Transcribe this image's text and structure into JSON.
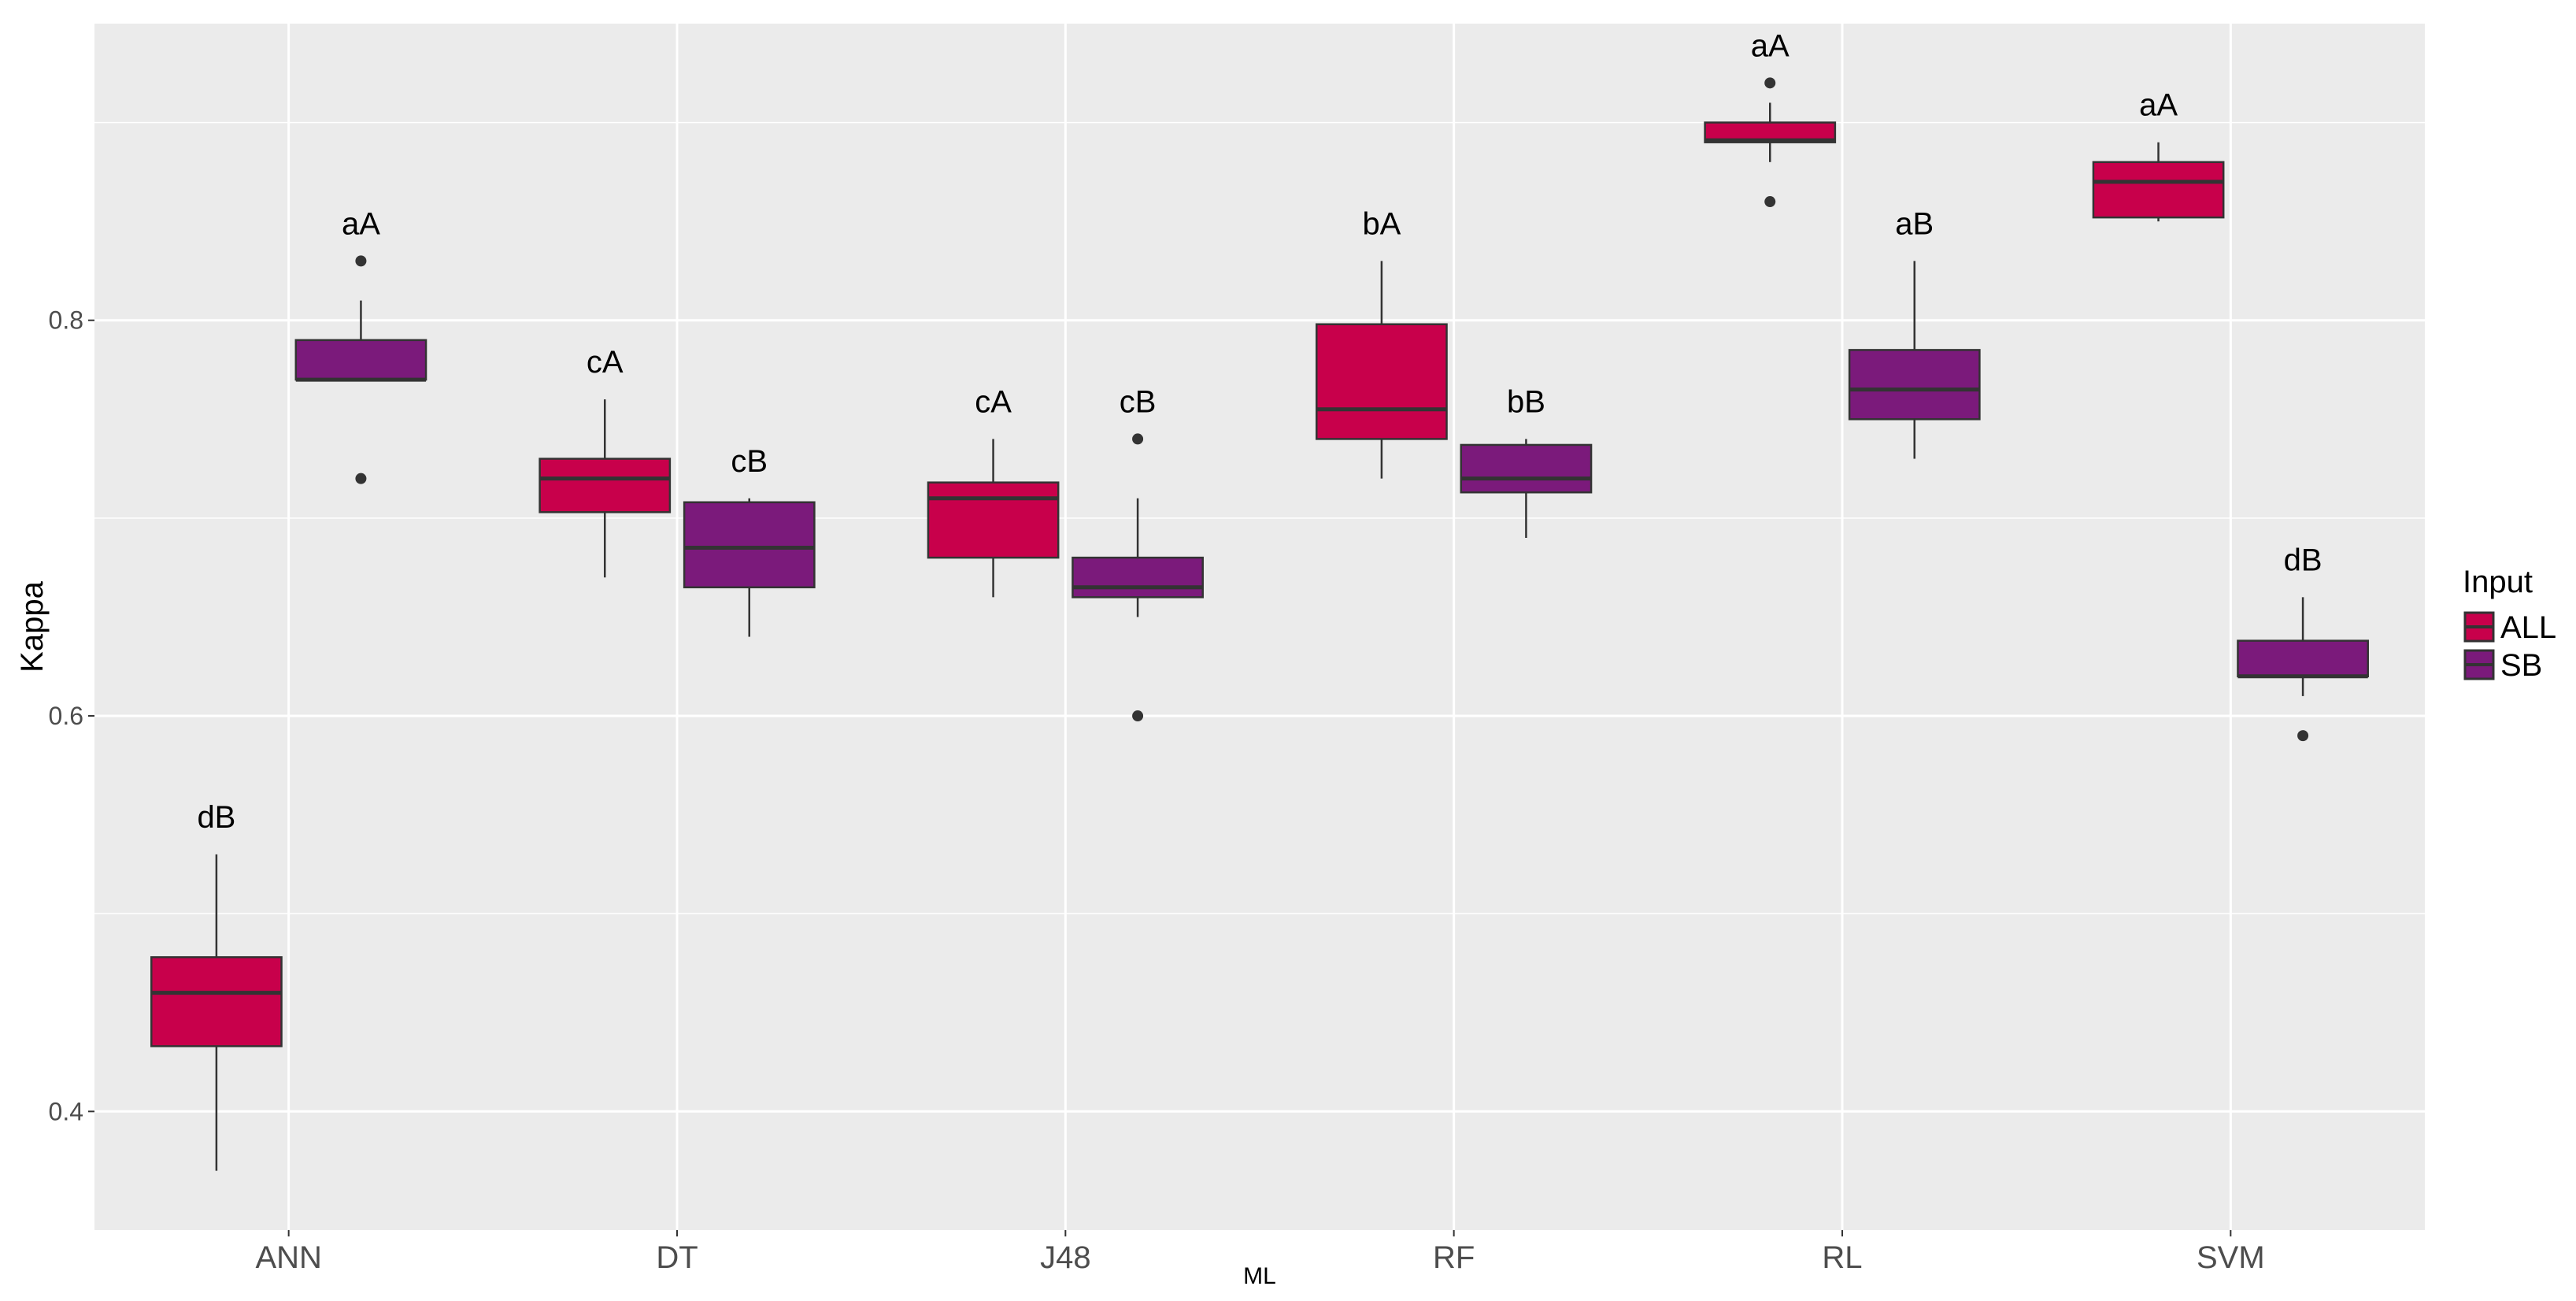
{
  "chart_data": {
    "type": "boxplot",
    "title": "",
    "xlabel": "ML",
    "ylabel": "Kappa",
    "ylim": [
      0.34,
      0.95
    ],
    "yticks": [
      0.4,
      0.6,
      0.8
    ],
    "ytick_labels": [
      "0.4",
      "0.6",
      "0.8"
    ],
    "categories": [
      "ANN",
      "DT",
      "J48",
      "RF",
      "RL",
      "SVM"
    ],
    "legend": {
      "title": "Input",
      "position": "right",
      "entries": [
        "ALL",
        "SB"
      ]
    },
    "colors": {
      "ALL": "#c8004b",
      "SB": "#7b1a7b",
      "panel": "#ebebeb",
      "grid": "#ffffff",
      "line": "#333333"
    },
    "series": [
      {
        "name": "ALL",
        "boxes": [
          {
            "category": "ANN",
            "q1": 0.433,
            "median": 0.46,
            "q3": 0.478,
            "whisker_low": 0.37,
            "whisker_high": 0.53,
            "outliers": [],
            "label": "dB"
          },
          {
            "category": "DT",
            "q1": 0.703,
            "median": 0.72,
            "q3": 0.73,
            "whisker_low": 0.67,
            "whisker_high": 0.76,
            "outliers": [],
            "label": "cA"
          },
          {
            "category": "J48",
            "q1": 0.68,
            "median": 0.71,
            "q3": 0.718,
            "whisker_low": 0.66,
            "whisker_high": 0.74,
            "outliers": [],
            "label": "cA"
          },
          {
            "category": "RF",
            "q1": 0.74,
            "median": 0.755,
            "q3": 0.798,
            "whisker_low": 0.72,
            "whisker_high": 0.83,
            "outliers": [],
            "label": "bA"
          },
          {
            "category": "RL",
            "q1": 0.89,
            "median": 0.891,
            "q3": 0.9,
            "whisker_low": 0.88,
            "whisker_high": 0.91,
            "outliers": [
              0.92,
              0.86
            ],
            "label": "aA"
          },
          {
            "category": "SVM",
            "q1": 0.852,
            "median": 0.87,
            "q3": 0.88,
            "whisker_low": 0.85,
            "whisker_high": 0.89,
            "outliers": [],
            "label": "aA"
          }
        ]
      },
      {
        "name": "SB",
        "boxes": [
          {
            "category": "ANN",
            "q1": 0.77,
            "median": 0.77,
            "q3": 0.79,
            "whisker_low": 0.77,
            "whisker_high": 0.81,
            "outliers": [
              0.83,
              0.72
            ],
            "label": "aA"
          },
          {
            "category": "DT",
            "q1": 0.665,
            "median": 0.685,
            "q3": 0.708,
            "whisker_low": 0.64,
            "whisker_high": 0.71,
            "outliers": [],
            "label": "cB"
          },
          {
            "category": "J48",
            "q1": 0.66,
            "median": 0.665,
            "q3": 0.68,
            "whisker_low": 0.65,
            "whisker_high": 0.71,
            "outliers": [
              0.74,
              0.6
            ],
            "label": "cB"
          },
          {
            "category": "RF",
            "q1": 0.713,
            "median": 0.72,
            "q3": 0.737,
            "whisker_low": 0.69,
            "whisker_high": 0.74,
            "outliers": [],
            "label": "bB"
          },
          {
            "category": "RL",
            "q1": 0.75,
            "median": 0.765,
            "q3": 0.785,
            "whisker_low": 0.73,
            "whisker_high": 0.83,
            "outliers": [],
            "label": "aB"
          },
          {
            "category": "SVM",
            "q1": 0.62,
            "median": 0.62,
            "q3": 0.638,
            "whisker_low": 0.61,
            "whisker_high": 0.66,
            "outliers": [
              0.59
            ],
            "label": "dB"
          }
        ]
      }
    ]
  }
}
